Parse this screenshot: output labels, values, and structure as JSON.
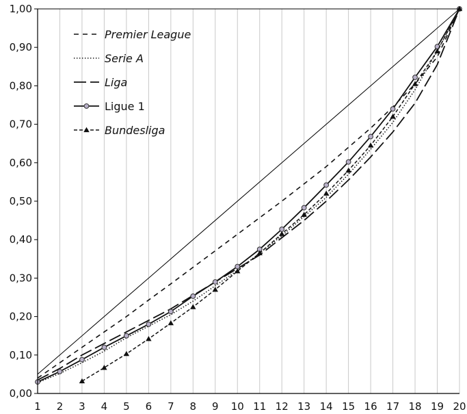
{
  "chart_data": {
    "type": "line",
    "x": [
      1,
      2,
      3,
      4,
      5,
      6,
      7,
      8,
      9,
      10,
      11,
      12,
      13,
      14,
      15,
      16,
      17,
      18,
      19,
      20
    ],
    "xlim": [
      1,
      20
    ],
    "ylim": [
      0,
      1
    ],
    "yticks": [
      "0,00",
      "0,10",
      "0,20",
      "0,30",
      "0,40",
      "0,50",
      "0,60",
      "0,70",
      "0,80",
      "0,90",
      "1,00"
    ],
    "xticks": [
      "1",
      "2",
      "3",
      "4",
      "5",
      "6",
      "7",
      "8",
      "9",
      "10",
      "11",
      "12",
      "13",
      "14",
      "15",
      "16",
      "17",
      "18",
      "19",
      "20"
    ],
    "grid": "vertical",
    "legend_position": "top-left",
    "reference_line": {
      "x": [
        1,
        20
      ],
      "y": [
        0.05,
        1.0
      ]
    },
    "series": [
      {
        "name": "Premier League",
        "style": "short-dash",
        "italic": true,
        "x": [
          1,
          2,
          3,
          4,
          5,
          6,
          7,
          8,
          9,
          10,
          11,
          12,
          13,
          14,
          15,
          16,
          17,
          18,
          19,
          20
        ],
        "y": [
          0.04,
          0.08,
          0.12,
          0.16,
          0.2,
          0.243,
          0.285,
          0.328,
          0.371,
          0.414,
          0.457,
          0.5,
          0.545,
          0.59,
          0.64,
          0.69,
          0.745,
          0.805,
          0.875,
          1.0
        ]
      },
      {
        "name": "Serie A",
        "style": "dotted",
        "italic": true,
        "x": [
          1,
          2,
          3,
          4,
          5,
          6,
          7,
          8,
          9,
          10,
          11,
          12,
          13,
          14,
          15,
          16,
          17,
          18,
          19,
          20
        ],
        "y": [
          0.028,
          0.052,
          0.08,
          0.11,
          0.145,
          0.175,
          0.205,
          0.24,
          0.28,
          0.32,
          0.365,
          0.41,
          0.46,
          0.51,
          0.57,
          0.635,
          0.705,
          0.79,
          0.89,
          1.0
        ]
      },
      {
        "name": "Liga",
        "style": "long-dash",
        "italic": true,
        "x": [
          1,
          2,
          3,
          4,
          5,
          6,
          7,
          8,
          9,
          10,
          11,
          12,
          13,
          14,
          15,
          16,
          17,
          18,
          19,
          20
        ],
        "y": [
          0.035,
          0.065,
          0.1,
          0.13,
          0.16,
          0.19,
          0.22,
          0.255,
          0.29,
          0.325,
          0.36,
          0.405,
          0.45,
          0.5,
          0.555,
          0.615,
          0.68,
          0.755,
          0.855,
          1.0
        ]
      },
      {
        "name": "Ligue 1",
        "style": "solid-circle",
        "italic": false,
        "x": [
          1,
          2,
          3,
          4,
          5,
          6,
          7,
          8,
          9,
          10,
          11,
          12,
          13,
          14,
          15,
          16,
          17,
          18,
          19,
          20
        ],
        "y": [
          0.03,
          0.057,
          0.088,
          0.12,
          0.15,
          0.18,
          0.213,
          0.253,
          0.29,
          0.33,
          0.375,
          0.427,
          0.483,
          0.542,
          0.602,
          0.668,
          0.74,
          0.822,
          0.902,
          1.0
        ]
      },
      {
        "name": "Bundesliga",
        "style": "dash-dot-triangle",
        "italic": true,
        "x": [
          3,
          4,
          5,
          6,
          7,
          8,
          9,
          10,
          11,
          12,
          13,
          14,
          15,
          16,
          17,
          18,
          19,
          20
        ],
        "y": [
          0.032,
          0.067,
          0.103,
          0.142,
          0.183,
          0.225,
          0.27,
          0.318,
          0.365,
          0.415,
          0.465,
          0.52,
          0.58,
          0.645,
          0.72,
          0.805,
          0.89,
          1.0
        ]
      }
    ]
  }
}
